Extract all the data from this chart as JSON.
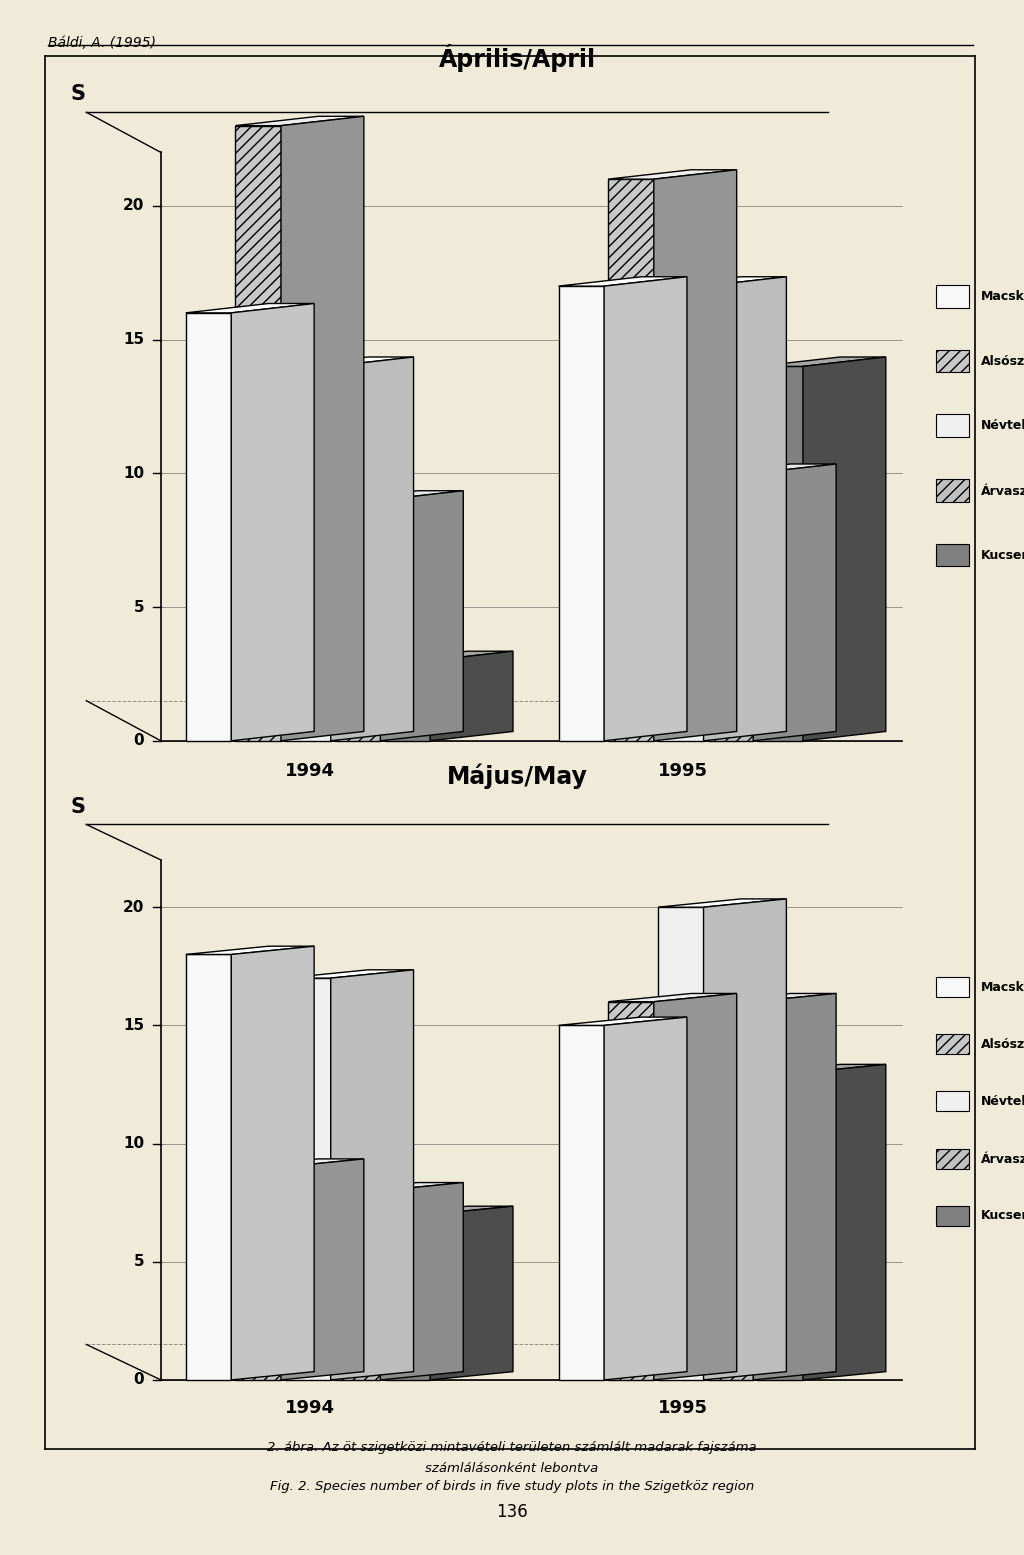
{
  "page_bg": "#f0ead8",
  "header_text": "Báldi, A. (1995)",
  "footer_text1": "2. ábra. Az öt szigetközi mintavételi területen számlált madarak fajszáma",
  "footer_text2": "számlálásonként lebontva",
  "footer_text3": "Fig. 2. Species number of birds in five study plots in the Szigetköz region",
  "page_number": "136",
  "chart1_title": "Április/April",
  "chart2_title": "Május/May",
  "legend_labels": [
    "Macskasziget",
    "Alsósziget",
    "Névtelen",
    "Árvasziget",
    "Kucser"
  ],
  "april_1994": [
    16,
    23,
    14,
    9,
    3
  ],
  "april_1995": [
    17,
    21,
    17,
    10,
    14
  ],
  "majus_1994": [
    18,
    9,
    17,
    8,
    7
  ],
  "majus_1995": [
    15,
    16,
    20,
    16,
    13
  ],
  "yticks": [
    0,
    5,
    10,
    15,
    20
  ],
  "ymax": 22
}
